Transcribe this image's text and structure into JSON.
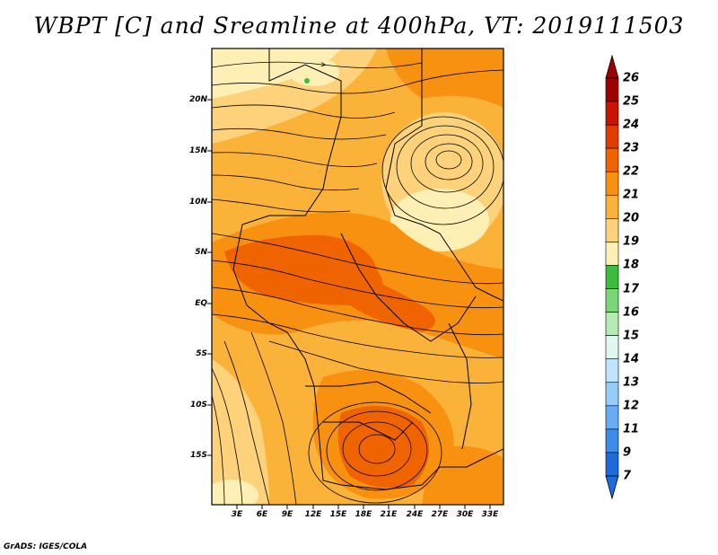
{
  "title": "WBPT [C] and Sreamline at 400hPa, VT: 2019111503",
  "credit": "GrADS: IGES/COLA",
  "map": {
    "lat_labels": [
      "20N",
      "15N",
      "10N",
      "5N",
      "EQ",
      "5S",
      "10S",
      "15S"
    ],
    "lon_labels": [
      "3E",
      "6E",
      "9E",
      "12E",
      "15E",
      "18E",
      "21E",
      "24E",
      "27E",
      "30E",
      "33E"
    ]
  },
  "colorbar": {
    "labels": [
      "26",
      "25",
      "24",
      "23",
      "22",
      "21",
      "20",
      "19",
      "18",
      "17",
      "16",
      "15",
      "14",
      "13",
      "12",
      "11",
      "9",
      "7"
    ],
    "colors": [
      "#9e0000",
      "#c81400",
      "#e03c00",
      "#f06400",
      "#f89010",
      "#fbb238",
      "#fdd27a",
      "#fef0b4",
      "#3cbc3c",
      "#78d878",
      "#b4ecb4",
      "#e0f8f0",
      "#c0e4fc",
      "#96ccfa",
      "#68acf4",
      "#3c8ce8",
      "#1e6cdc"
    ]
  }
}
